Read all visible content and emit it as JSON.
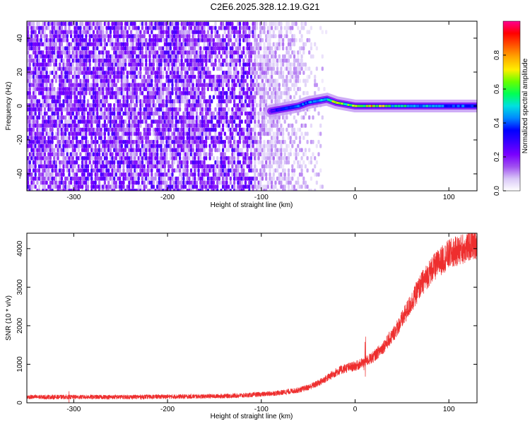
{
  "title": "C2E6.2025.328.12.19.G21",
  "chart_data": [
    {
      "type": "heatmap",
      "xlabel": "Height of straight line (km)",
      "ylabel": "Frequency (Hz)",
      "xlim": [
        -350,
        130
      ],
      "ylim": [
        -50,
        50
      ],
      "x_ticks": [
        -300,
        -200,
        -100,
        0,
        100
      ],
      "y_ticks": [
        -40,
        -20,
        0,
        20,
        40
      ],
      "colorbar": {
        "label": "Normalized spectral amplitude",
        "range": [
          0,
          1
        ],
        "ticks": [
          0.0,
          0.2,
          0.4,
          0.6,
          0.8
        ],
        "colormap": "rainbow",
        "colors": [
          "#ffffff",
          "#d9c7f7",
          "#a050f0",
          "#7a00ff",
          "#3a00ff",
          "#0000ff",
          "#0088ff",
          "#00e0e0",
          "#00ff55",
          "#66ff00",
          "#ffee00",
          "#ffaa00",
          "#ff5500",
          "#ff0000",
          "#ff0090"
        ]
      },
      "noise_region_km": [
        -350,
        -30
      ],
      "carrier_trace": [
        {
          "x": -90,
          "y": -3,
          "amp": 0.3
        },
        {
          "x": -80,
          "y": -2,
          "amp": 0.35
        },
        {
          "x": -70,
          "y": -1,
          "amp": 0.4
        },
        {
          "x": -60,
          "y": 0,
          "amp": 0.45
        },
        {
          "x": -50,
          "y": 2,
          "amp": 0.45
        },
        {
          "x": -40,
          "y": 3,
          "amp": 0.5
        },
        {
          "x": -30,
          "y": 4,
          "amp": 0.55
        },
        {
          "x": -20,
          "y": 2,
          "amp": 0.8
        },
        {
          "x": -10,
          "y": 1,
          "amp": 0.6
        },
        {
          "x": 0,
          "y": 0,
          "amp": 0.8
        },
        {
          "x": 10,
          "y": 0,
          "amp": 0.7
        },
        {
          "x": 20,
          "y": 0,
          "amp": 0.85
        },
        {
          "x": 40,
          "y": 0,
          "amp": 0.6
        },
        {
          "x": 60,
          "y": 0,
          "amp": 0.55
        },
        {
          "x": 80,
          "y": 0,
          "amp": 0.5
        },
        {
          "x": 100,
          "y": 0,
          "amp": 0.45
        },
        {
          "x": 130,
          "y": 0,
          "amp": 0.45
        }
      ]
    },
    {
      "type": "line",
      "xlabel": "Height of straight line (km)",
      "ylabel": "SNR (10 * v/v)",
      "xlim": [
        -350,
        130
      ],
      "ylim": [
        0,
        4400
      ],
      "x_ticks": [
        -300,
        -200,
        -100,
        0,
        100
      ],
      "y_ticks": [
        0,
        1000,
        2000,
        3000,
        4000
      ],
      "color": "#ee2e2e",
      "series": [
        {
          "x": [
            -350,
            -300,
            -250,
            -200,
            -150,
            -120,
            -100,
            -80,
            -60,
            -50,
            -40,
            -30,
            -20,
            -10,
            0,
            10,
            20,
            30,
            40,
            50,
            60,
            70,
            80,
            90,
            100,
            110,
            120,
            130
          ],
          "values": [
            150,
            150,
            150,
            160,
            170,
            190,
            220,
            260,
            330,
            400,
            500,
            640,
            800,
            900,
            950,
            1050,
            1200,
            1450,
            1750,
            2150,
            2600,
            3050,
            3400,
            3650,
            3850,
            3950,
            4050,
            4150
          ]
        }
      ]
    }
  ]
}
